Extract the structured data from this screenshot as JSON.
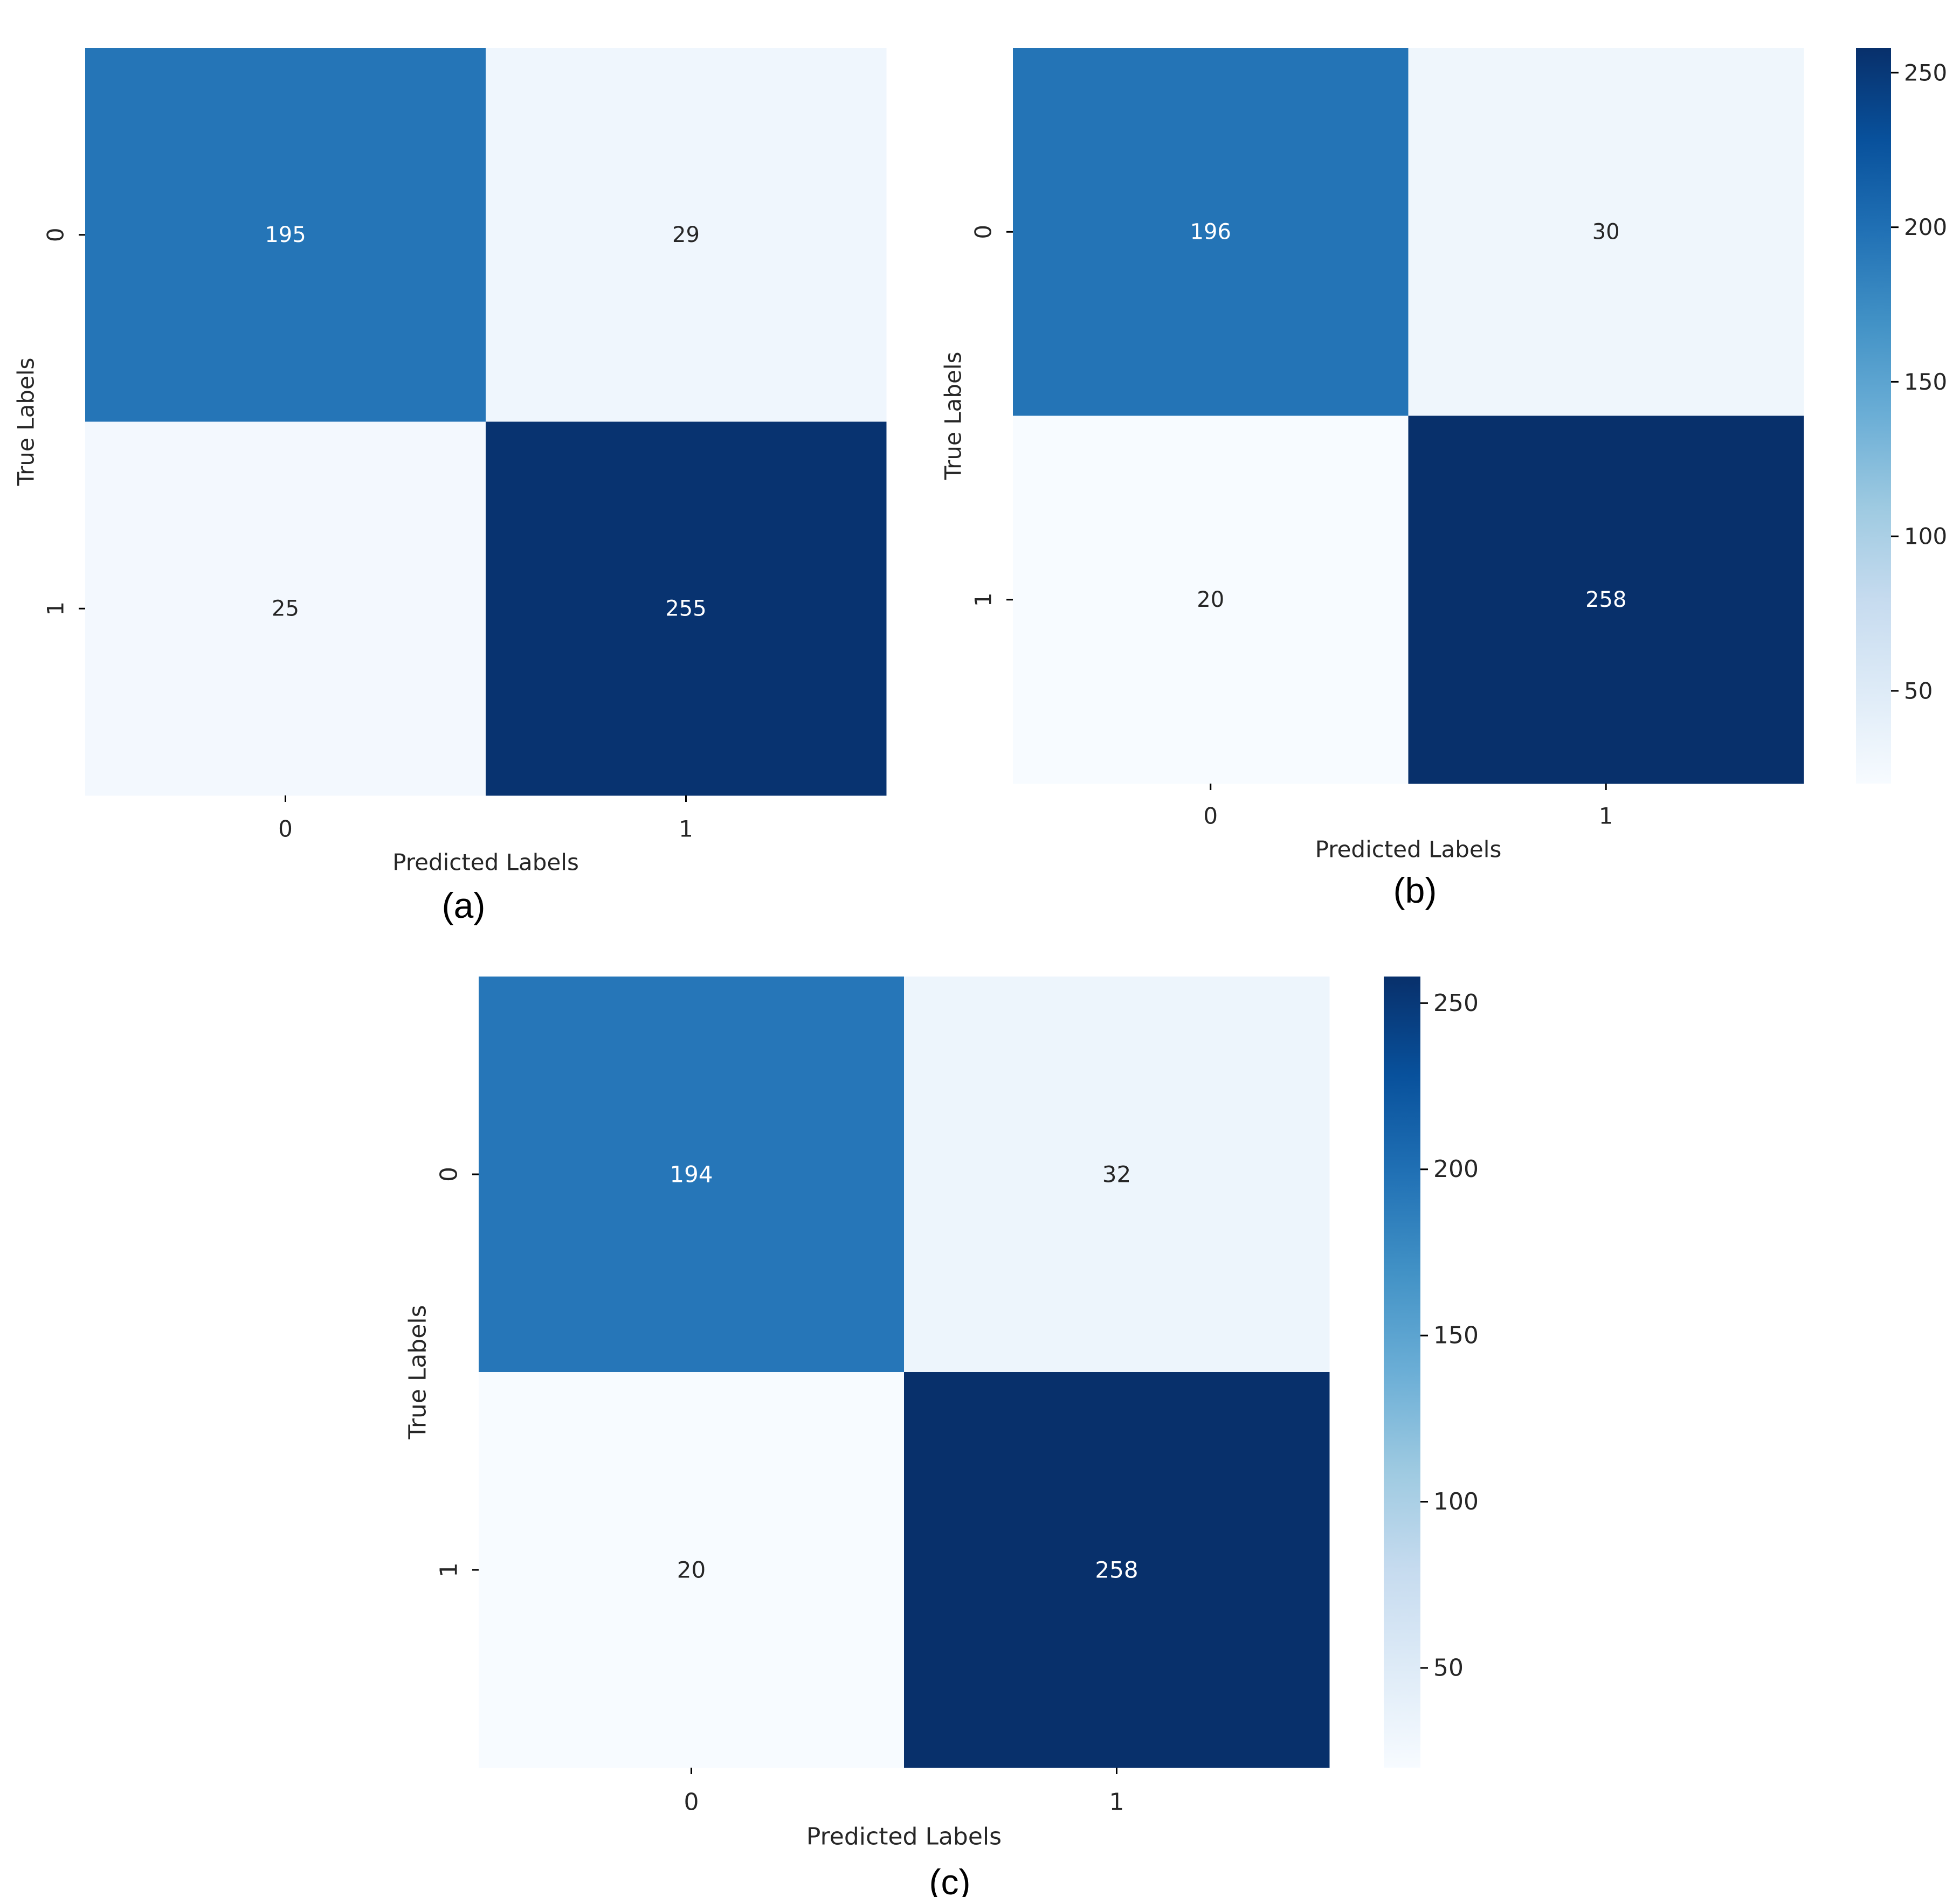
{
  "chart_data": [
    {
      "type": "heatmap",
      "panel_label": "(a)",
      "xlabel": "Predicted Labels",
      "ylabel": "True Labels",
      "x_categories": [
        "0",
        "1"
      ],
      "y_categories": [
        "0",
        "1"
      ],
      "values": [
        [
          195,
          29
        ],
        [
          25,
          255
        ]
      ],
      "cell_text": [
        [
          "195",
          "29"
        ],
        [
          "25",
          "255"
        ]
      ],
      "colorbar": null
    },
    {
      "type": "heatmap",
      "panel_label": "(b)",
      "xlabel": "Predicted Labels",
      "ylabel": "True Labels",
      "x_categories": [
        "0",
        "1"
      ],
      "y_categories": [
        "0",
        "1"
      ],
      "values": [
        [
          196,
          30
        ],
        [
          20,
          258
        ]
      ],
      "cell_text": [
        [
          "196",
          "30"
        ],
        [
          "20",
          "258"
        ]
      ],
      "colorbar": {
        "vmin": 20,
        "vmax": 258,
        "ticks": [
          50,
          100,
          150,
          200,
          250
        ],
        "tick_labels": [
          "50",
          "100",
          "150",
          "200",
          "250"
        ],
        "colormap": "Blues"
      }
    },
    {
      "type": "heatmap",
      "panel_label": "(c)",
      "xlabel": "Predicted Labels",
      "ylabel": "True Labels",
      "x_categories": [
        "0",
        "1"
      ],
      "y_categories": [
        "0",
        "1"
      ],
      "values": [
        [
          194,
          32
        ],
        [
          20,
          258
        ]
      ],
      "cell_text": [
        [
          "194",
          "32"
        ],
        [
          "20",
          "258"
        ]
      ],
      "colorbar": {
        "vmin": 20,
        "vmax": 258,
        "ticks": [
          50,
          100,
          150,
          200,
          250
        ],
        "tick_labels": [
          "50",
          "100",
          "150",
          "200",
          "250"
        ],
        "colormap": "Blues"
      }
    }
  ],
  "colors": {
    "blues_low": "#f7fbff",
    "blues_high": "#08306b",
    "text_dark": "#262626",
    "text_light": "#ffffff",
    "axis": "#000000"
  }
}
